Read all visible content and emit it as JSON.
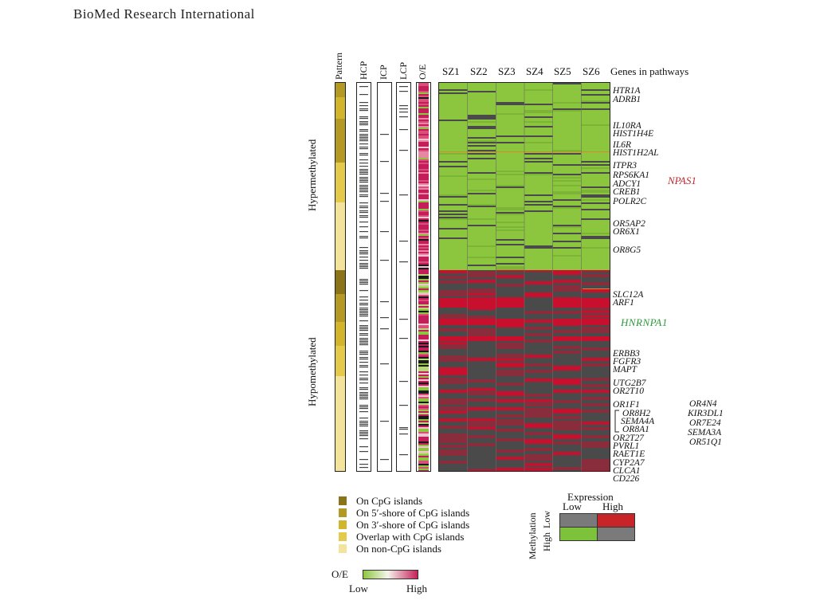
{
  "journal": "BioMed Research International",
  "tracks": {
    "labels": [
      "Pattern",
      "HCP",
      "ICP",
      "LCP",
      "O/E"
    ]
  },
  "groups": {
    "hyper": "Hypermethylated",
    "hypo": "Hypomethylated"
  },
  "columns": [
    "SZ1",
    "SZ2",
    "SZ3",
    "SZ4",
    "SZ5",
    "SZ6"
  ],
  "genes_header": "Genes in pathways",
  "genes": [
    "HTR1A",
    "ADRB1",
    "IL10RA",
    "HIST1H4E",
    "IL6R",
    "HIST1H2AL",
    "ITPR3",
    "RPS6KA1",
    "ADCY1",
    "CREB1",
    "POLR2C",
    "OR5AP2",
    "OR6X1",
    "OR8G5",
    "SLC12A",
    "ARF1",
    "ERBB3",
    "FGFR3",
    "MAPT",
    "UTG2B7",
    "OR2T10",
    "OR1F1",
    "OR8H2",
    "SEMA4A",
    "OR8A1",
    "OR2T27",
    "PVRL1",
    "RAET1E",
    "CYP2A7",
    "CLCA1",
    "CD226"
  ],
  "genes_extra": [
    "OR4N4",
    "KIR3DL1",
    "OR7E24",
    "SEMA3A",
    "OR51Q1"
  ],
  "highlight_genes": {
    "hyper": "NPAS1",
    "hypo": "HNRNPA1"
  },
  "pattern_legend": {
    "items": [
      {
        "label": "On CpG islands",
        "color": "#8a7318"
      },
      {
        "label": "On 5′-shore of CpG islands",
        "color": "#b49a24"
      },
      {
        "label": "On 3′-shore of CpG islands",
        "color": "#d2b52c"
      },
      {
        "label": "Overlap with CpG islands",
        "color": "#e4c94a"
      },
      {
        "label": "On non-CpG islands",
        "color": "#f4e39a"
      }
    ]
  },
  "oe_legend": {
    "title": "O/E",
    "low": "Low",
    "high": "High"
  },
  "expression_legend": {
    "title": "Expression",
    "low": "Low",
    "high": "High",
    "methylation": "Methylation",
    "meth_low": "Low",
    "meth_high": "High"
  },
  "colors": {
    "green": "#8cc63f",
    "red": "#c8102e",
    "grey": "#5a5a5a",
    "npas1": "#c0282d",
    "hnrnpa1": "#2f9a3a"
  }
}
